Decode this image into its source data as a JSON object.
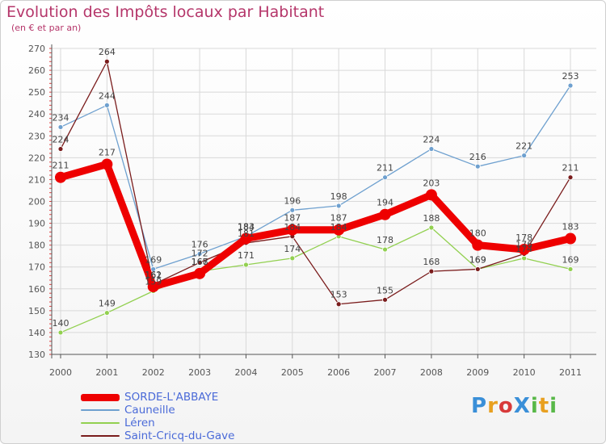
{
  "title": "Evolution des Impôts locaux par Habitant",
  "subtitle": "(en € et par an)",
  "logo": {
    "text": "ProXiti",
    "letters": [
      "P",
      "r",
      "o",
      "X",
      "i",
      "t",
      "i"
    ],
    "colors": [
      "#3a8fd8",
      "#e8a020",
      "#d83a3a",
      "#3a8fd8",
      "#58b848",
      "#e8a020",
      "#58b848"
    ]
  },
  "chart_data": {
    "type": "line",
    "title": "Evolution des Impôts locaux par Habitant",
    "subtitle": "(en € et par an)",
    "xlabel": "",
    "ylabel": "",
    "x": [
      "2000",
      "2001",
      "2002",
      "2003",
      "2004",
      "2005",
      "2006",
      "2007",
      "2008",
      "2009",
      "2010",
      "2011"
    ],
    "ylim": [
      130,
      270
    ],
    "yticks": [
      130,
      140,
      150,
      160,
      170,
      180,
      190,
      200,
      210,
      220,
      230,
      240,
      250,
      260,
      270
    ],
    "grid": true,
    "series": [
      {
        "name": "SORDE-L'ABBAYE",
        "color": "#ee0000",
        "width": 9,
        "point_radius": 7,
        "values": [
          211,
          217,
          161,
          167,
          183,
          187,
          187,
          194,
          203,
          180,
          178,
          183
        ]
      },
      {
        "name": "Cauneille",
        "color": "#6ea0cf",
        "width": 1.3,
        "point_radius": 3,
        "values": [
          234,
          244,
          169,
          176,
          184,
          196,
          198,
          211,
          224,
          216,
          221,
          253
        ]
      },
      {
        "name": "Léren",
        "color": "#92d050",
        "width": 1.3,
        "point_radius": 3,
        "values": [
          140,
          149,
          159,
          168,
          171,
          174,
          184,
          178,
          188,
          169,
          174,
          169
        ]
      },
      {
        "name": "Saint-Cricq-du-Gave",
        "color": "#7a1c1c",
        "width": 1.3,
        "point_radius": 3,
        "values": [
          224,
          264,
          162,
          172,
          181,
          184,
          153,
          155,
          168,
          169,
          176,
          211
        ]
      }
    ]
  }
}
